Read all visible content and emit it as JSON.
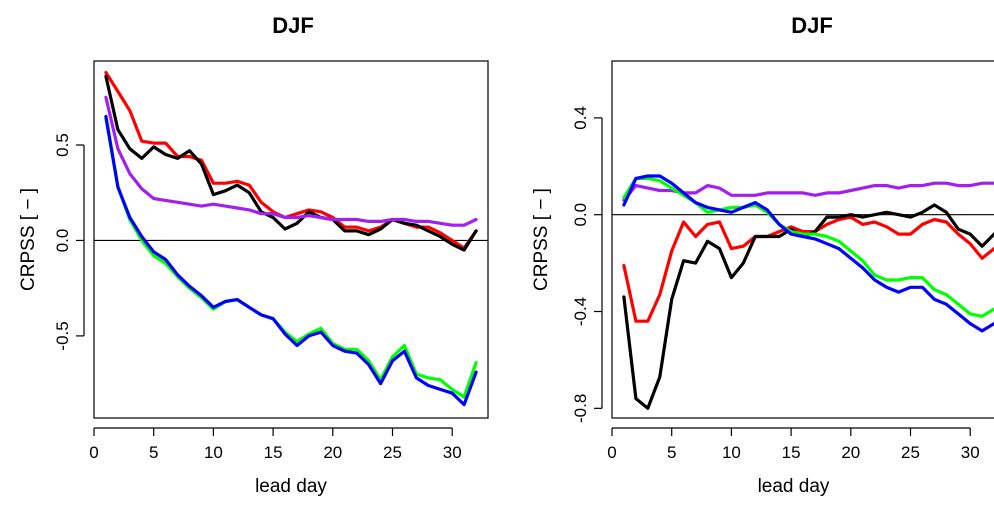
{
  "chart_data": [
    {
      "type": "line",
      "title": "DJF",
      "xlabel": "lead day",
      "ylabel": "CRPSS [ − ]",
      "xlim": [
        0,
        32.6
      ],
      "ylim": [
        -0.93,
        0.94
      ],
      "xticks": [
        0,
        5,
        10,
        15,
        20,
        25,
        30
      ],
      "yticks": [
        -0.5,
        0.0,
        0.5
      ],
      "ytick_labels": [
        "-0.5",
        "0.0",
        "0.5"
      ],
      "reference_line": 0,
      "grid": false,
      "x": [
        1,
        2,
        3,
        4,
        5,
        6,
        7,
        8,
        9,
        10,
        11,
        12,
        13,
        14,
        15,
        16,
        17,
        18,
        19,
        20,
        21,
        22,
        23,
        24,
        25,
        26,
        27,
        28,
        29,
        30,
        31,
        32
      ],
      "series": [
        {
          "color": "#ff0000",
          "values": [
            0.88,
            0.78,
            0.68,
            0.52,
            0.51,
            0.51,
            0.44,
            0.44,
            0.42,
            0.3,
            0.3,
            0.31,
            0.29,
            0.2,
            0.15,
            0.12,
            0.14,
            0.16,
            0.15,
            0.12,
            0.07,
            0.07,
            0.05,
            0.07,
            0.11,
            0.09,
            0.07,
            0.07,
            0.04,
            0.0,
            -0.04,
            0.05
          ]
        },
        {
          "color": "#000000",
          "values": [
            0.86,
            0.58,
            0.48,
            0.43,
            0.49,
            0.45,
            0.43,
            0.47,
            0.4,
            0.24,
            0.26,
            0.29,
            0.25,
            0.15,
            0.12,
            0.06,
            0.09,
            0.15,
            0.12,
            0.11,
            0.05,
            0.05,
            0.03,
            0.06,
            0.11,
            0.09,
            0.08,
            0.05,
            0.02,
            -0.02,
            -0.05,
            0.05
          ]
        },
        {
          "color": "#a020f0",
          "values": [
            0.75,
            0.48,
            0.35,
            0.27,
            0.22,
            0.21,
            0.2,
            0.19,
            0.18,
            0.19,
            0.18,
            0.17,
            0.16,
            0.14,
            0.14,
            0.12,
            0.12,
            0.13,
            0.12,
            0.11,
            0.11,
            0.11,
            0.1,
            0.1,
            0.11,
            0.11,
            0.1,
            0.1,
            0.09,
            0.08,
            0.08,
            0.11
          ]
        },
        {
          "color": "#00ff00",
          "values": [
            0.64,
            0.28,
            0.11,
            0.0,
            -0.08,
            -0.12,
            -0.19,
            -0.25,
            -0.3,
            -0.36,
            -0.32,
            -0.31,
            -0.35,
            -0.39,
            -0.41,
            -0.48,
            -0.53,
            -0.49,
            -0.46,
            -0.54,
            -0.57,
            -0.57,
            -0.63,
            -0.73,
            -0.61,
            -0.55,
            -0.7,
            -0.72,
            -0.73,
            -0.78,
            -0.82,
            -0.64
          ]
        },
        {
          "color": "#0000ff",
          "values": [
            0.65,
            0.28,
            0.12,
            0.02,
            -0.06,
            -0.1,
            -0.18,
            -0.24,
            -0.29,
            -0.35,
            -0.32,
            -0.31,
            -0.35,
            -0.39,
            -0.41,
            -0.49,
            -0.55,
            -0.5,
            -0.48,
            -0.55,
            -0.58,
            -0.59,
            -0.65,
            -0.75,
            -0.63,
            -0.58,
            -0.72,
            -0.76,
            -0.78,
            -0.8,
            -0.86,
            -0.69
          ]
        }
      ]
    },
    {
      "type": "line",
      "title": "DJF",
      "xlabel": "lead day",
      "ylabel": "CRPSS [ − ]",
      "xlim": [
        0,
        32.6
      ],
      "ylim": [
        -0.84,
        0.635
      ],
      "xticks": [
        0,
        5,
        10,
        15,
        20,
        25,
        30
      ],
      "yticks": [
        -0.8,
        -0.4,
        0.0,
        0.4
      ],
      "ytick_labels": [
        "-0.8",
        "-0.4",
        "0.0",
        "0.4"
      ],
      "reference_line": 0,
      "grid": false,
      "x": [
        1,
        2,
        3,
        4,
        5,
        6,
        7,
        8,
        9,
        10,
        11,
        12,
        13,
        14,
        15,
        16,
        17,
        18,
        19,
        20,
        21,
        22,
        23,
        24,
        25,
        26,
        27,
        28,
        29,
        30,
        31,
        32
      ],
      "series": [
        {
          "color": "#ff0000",
          "values": [
            -0.21,
            -0.44,
            -0.44,
            -0.33,
            -0.15,
            -0.03,
            -0.09,
            -0.04,
            -0.03,
            -0.14,
            -0.13,
            -0.09,
            -0.09,
            -0.07,
            -0.05,
            -0.07,
            -0.07,
            -0.04,
            -0.02,
            -0.01,
            -0.04,
            -0.03,
            -0.05,
            -0.08,
            -0.08,
            -0.04,
            -0.02,
            -0.03,
            -0.08,
            -0.12,
            -0.18,
            -0.14
          ]
        },
        {
          "color": "#000000",
          "values": [
            -0.34,
            -0.76,
            -0.8,
            -0.67,
            -0.35,
            -0.19,
            -0.2,
            -0.11,
            -0.14,
            -0.26,
            -0.2,
            -0.09,
            -0.09,
            -0.09,
            -0.06,
            -0.09,
            -0.07,
            -0.01,
            -0.01,
            0.0,
            -0.01,
            0.0,
            0.01,
            0.0,
            -0.01,
            0.01,
            0.04,
            0.01,
            -0.06,
            -0.08,
            -0.13,
            -0.08
          ]
        },
        {
          "color": "#a020f0",
          "values": [
            0.06,
            0.12,
            0.11,
            0.1,
            0.1,
            0.09,
            0.09,
            0.12,
            0.11,
            0.08,
            0.08,
            0.08,
            0.09,
            0.09,
            0.09,
            0.09,
            0.08,
            0.09,
            0.09,
            0.1,
            0.11,
            0.12,
            0.12,
            0.11,
            0.12,
            0.12,
            0.13,
            0.13,
            0.12,
            0.12,
            0.13,
            0.13
          ]
        },
        {
          "color": "#00ff00",
          "values": [
            0.07,
            0.15,
            0.15,
            0.14,
            0.11,
            0.08,
            0.05,
            0.01,
            0.02,
            0.03,
            0.03,
            0.04,
            0.01,
            -0.04,
            -0.07,
            -0.08,
            -0.08,
            -0.09,
            -0.11,
            -0.15,
            -0.19,
            -0.25,
            -0.27,
            -0.27,
            -0.26,
            -0.26,
            -0.31,
            -0.33,
            -0.37,
            -0.41,
            -0.42,
            -0.39
          ]
        },
        {
          "color": "#0000ff",
          "values": [
            0.04,
            0.15,
            0.16,
            0.16,
            0.13,
            0.09,
            0.05,
            0.03,
            0.02,
            0.01,
            0.03,
            0.05,
            0.02,
            -0.04,
            -0.08,
            -0.09,
            -0.1,
            -0.12,
            -0.14,
            -0.18,
            -0.22,
            -0.27,
            -0.3,
            -0.32,
            -0.3,
            -0.3,
            -0.35,
            -0.37,
            -0.41,
            -0.45,
            -0.48,
            -0.45
          ]
        }
      ]
    }
  ]
}
